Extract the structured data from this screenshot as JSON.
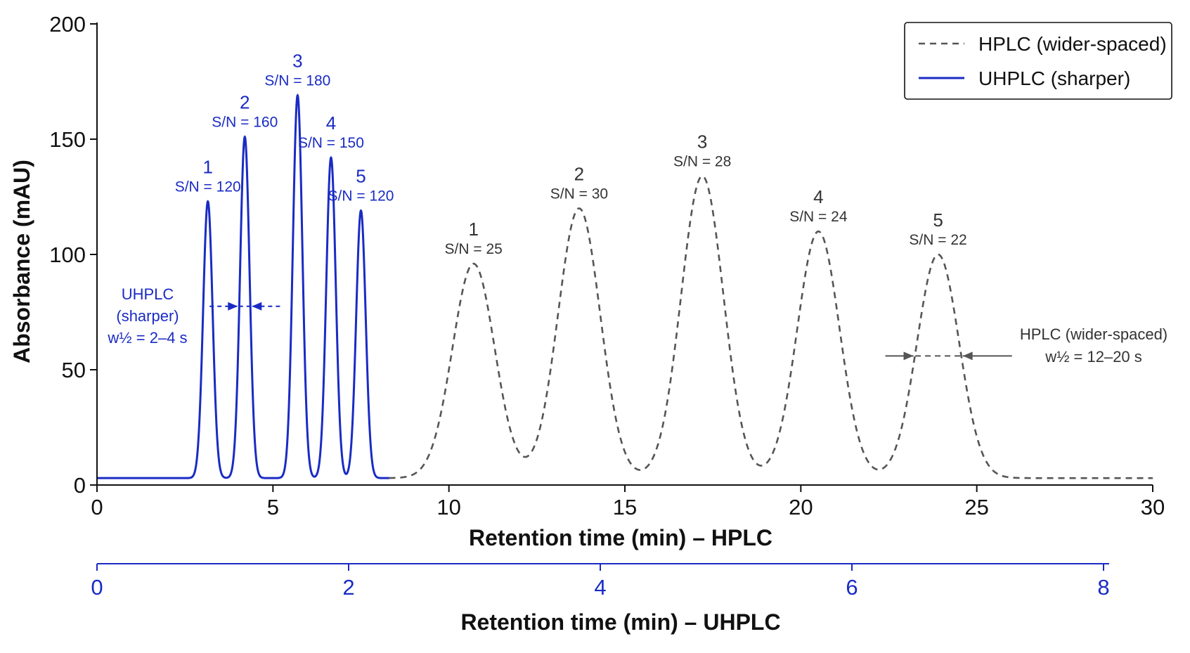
{
  "colors": {
    "hplc": "#555555",
    "uhplc": "#1a2bc4",
    "axis": "#111111"
  },
  "chart_data": {
    "type": "line",
    "xlabel": "Retention time (min) – HPLC",
    "x2label": "Retention time (min) – UHPLC",
    "ylabel": "Absorbance (mAU)",
    "xlim": [
      0,
      30
    ],
    "x2lim": [
      0,
      8
    ],
    "ylim": [
      0,
      200
    ],
    "x_ticks": [
      "0",
      "5",
      "10",
      "15",
      "20",
      "25",
      "30"
    ],
    "x2_ticks": [
      "0",
      "2",
      "4",
      "6",
      "8"
    ],
    "y_ticks": [
      "0",
      "50",
      "100",
      "150",
      "200"
    ],
    "baseline": 3,
    "legend_position": "top-right",
    "series": [
      {
        "name": "HPLC (wider-spaced)",
        "style": "dashed",
        "peaks": [
          {
            "label": "1",
            "sn": "S/N = 25",
            "x": 10.7,
            "height": 96
          },
          {
            "label": "2",
            "sn": "S/N = 30",
            "x": 13.7,
            "height": 120
          },
          {
            "label": "3",
            "sn": "S/N = 28",
            "x": 17.2,
            "height": 134
          },
          {
            "label": "4",
            "sn": "S/N = 24",
            "x": 20.5,
            "height": 110
          },
          {
            "label": "5",
            "sn": "S/N = 22",
            "x": 23.9,
            "height": 100
          }
        ]
      },
      {
        "name": "UHPLC (sharper)",
        "style": "solid",
        "peaks": [
          {
            "label": "1",
            "sn": "S/N = 120",
            "x": 3.15,
            "height": 123
          },
          {
            "label": "2",
            "sn": "S/N = 160",
            "x": 4.2,
            "height": 151
          },
          {
            "label": "3",
            "sn": "S/N = 180",
            "x": 5.7,
            "height": 169
          },
          {
            "label": "4",
            "sn": "S/N = 150",
            "x": 6.65,
            "height": 142
          },
          {
            "label": "5",
            "sn": "S/N = 120",
            "x": 7.5,
            "height": 119
          }
        ]
      }
    ],
    "annotations": {
      "uhplc": [
        "UHPLC",
        "(sharper)",
        "w½ = 2–4 s"
      ],
      "hplc": [
        "HPLC (wider-spaced)",
        "w½ = 12–20 s"
      ]
    }
  }
}
